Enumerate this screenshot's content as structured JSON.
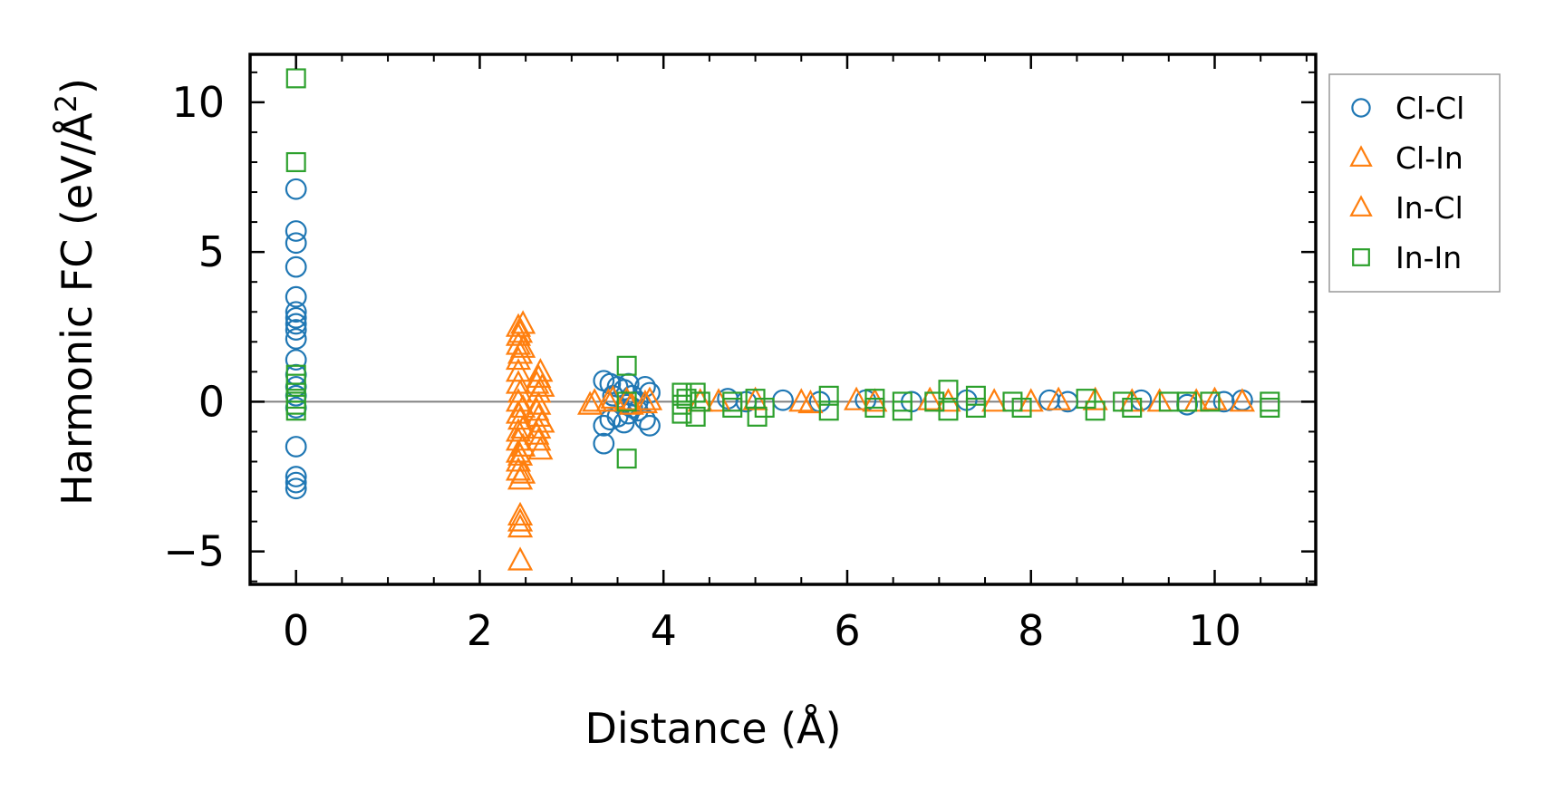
{
  "chart_data": {
    "type": "scatter",
    "xlabel": "Distance (Å)",
    "ylabel_main": "Harmonic FC (eV/Å",
    "ylabel_sup": "2",
    "ylabel_close": ")",
    "xlim": [
      -0.5,
      11.1
    ],
    "ylim": [
      -6.1,
      11.6
    ],
    "x_ticks": [
      {
        "value": 0,
        "label": "0"
      },
      {
        "value": 2,
        "label": "2"
      },
      {
        "value": 4,
        "label": "4"
      },
      {
        "value": 6,
        "label": "6"
      },
      {
        "value": 8,
        "label": "8"
      },
      {
        "value": 10,
        "label": "10"
      }
    ],
    "y_ticks": [
      {
        "value": -5,
        "label": "−5"
      },
      {
        "value": 0,
        "label": "0"
      },
      {
        "value": 5,
        "label": "5"
      },
      {
        "value": 10,
        "label": "10"
      }
    ],
    "zero_line": 0,
    "legend_position": "outside-right",
    "series": [
      {
        "name": "Cl-Cl",
        "marker": "circle",
        "color": "#1f77b4",
        "points": [
          [
            0,
            7.1
          ],
          [
            0,
            5.7
          ],
          [
            0,
            5.3
          ],
          [
            0,
            4.5
          ],
          [
            0,
            3.5
          ],
          [
            0,
            3.0
          ],
          [
            0,
            2.8
          ],
          [
            0,
            2.6
          ],
          [
            0,
            2.4
          ],
          [
            0,
            2.1
          ],
          [
            0,
            1.4
          ],
          [
            0,
            0.9
          ],
          [
            0,
            0.5
          ],
          [
            0,
            0.2
          ],
          [
            0,
            -0.2
          ],
          [
            0,
            -1.5
          ],
          [
            0,
            -2.5
          ],
          [
            0,
            -2.7
          ],
          [
            0,
            -2.9
          ],
          [
            3.35,
            0.7
          ],
          [
            3.42,
            0.6
          ],
          [
            3.5,
            0.5
          ],
          [
            3.57,
            0.4
          ],
          [
            3.62,
            0.6
          ],
          [
            3.66,
            0.2
          ],
          [
            3.72,
            0.0
          ],
          [
            3.8,
            0.5
          ],
          [
            3.85,
            0.3
          ],
          [
            3.35,
            -0.8
          ],
          [
            3.42,
            -0.6
          ],
          [
            3.5,
            -0.5
          ],
          [
            3.57,
            -0.7
          ],
          [
            3.62,
            -0.4
          ],
          [
            3.66,
            -0.2
          ],
          [
            3.72,
            -0.3
          ],
          [
            3.8,
            -0.6
          ],
          [
            3.85,
            -0.8
          ],
          [
            3.35,
            -1.4
          ],
          [
            3.45,
            0.2
          ],
          [
            3.6,
            -0.1
          ],
          [
            4.7,
            0.1
          ],
          [
            4.9,
            0.0
          ],
          [
            5.3,
            0.05
          ],
          [
            5.7,
            0.0
          ],
          [
            6.2,
            0.05
          ],
          [
            6.7,
            0.0
          ],
          [
            7.3,
            0.05
          ],
          [
            8.2,
            0.05
          ],
          [
            8.4,
            0.0
          ],
          [
            9.2,
            0.05
          ],
          [
            9.7,
            -0.1
          ],
          [
            10.1,
            0.0
          ],
          [
            10.3,
            0.05
          ]
        ]
      },
      {
        "name": "Cl-In",
        "marker": "triangle",
        "color": "#ff7f0e",
        "points": [
          [
            2.42,
            2.5
          ],
          [
            2.42,
            2.2
          ],
          [
            2.42,
            1.9
          ],
          [
            2.42,
            1.4
          ],
          [
            2.42,
            1.0
          ],
          [
            2.42,
            0.6
          ],
          [
            2.42,
            0.0
          ],
          [
            2.42,
            -0.4
          ],
          [
            2.42,
            -1.0
          ],
          [
            2.42,
            -1.3
          ],
          [
            2.42,
            -1.7
          ],
          [
            2.42,
            -2.0
          ],
          [
            2.42,
            -2.3
          ],
          [
            2.47,
            2.6
          ],
          [
            2.47,
            1.8
          ],
          [
            2.47,
            -0.2
          ],
          [
            2.47,
            -0.9
          ],
          [
            2.47,
            -1.5
          ],
          [
            2.47,
            -2.4
          ],
          [
            2.44,
            -3.8
          ],
          [
            2.44,
            -4.2
          ],
          [
            2.44,
            -5.3
          ],
          [
            2.64,
            0.8
          ],
          [
            2.64,
            0.3
          ],
          [
            2.64,
            -0.1
          ],
          [
            2.64,
            -0.5
          ],
          [
            2.64,
            -0.9
          ],
          [
            2.64,
            -1.3
          ],
          [
            2.66,
            1.0
          ],
          [
            2.66,
            -1.6
          ],
          [
            2.68,
            0.5
          ],
          [
            2.68,
            -0.7
          ],
          [
            3.25,
            0.0
          ],
          [
            3.45,
            0.1
          ],
          [
            3.65,
            -0.1
          ],
          [
            3.85,
            0.05
          ],
          [
            4.6,
            0.0
          ],
          [
            5.5,
            0.0
          ],
          [
            6.1,
            0.05
          ],
          [
            7.1,
            0.0
          ],
          [
            8.3,
            0.05
          ],
          [
            9.1,
            0.0
          ],
          [
            10.0,
            0.05
          ]
        ]
      },
      {
        "name": "In-Cl",
        "marker": "triangle",
        "color": "#ff7f0e",
        "points": [
          [
            2.44,
            2.3
          ],
          [
            2.44,
            1.6
          ],
          [
            2.44,
            0.3
          ],
          [
            2.44,
            -0.6
          ],
          [
            2.44,
            -1.8
          ],
          [
            2.44,
            -2.6
          ],
          [
            2.44,
            -4.0
          ],
          [
            2.62,
            0.6
          ],
          [
            2.62,
            -0.3
          ],
          [
            2.62,
            -1.1
          ],
          [
            3.2,
            -0.1
          ],
          [
            3.4,
            0.0
          ],
          [
            3.6,
            0.05
          ],
          [
            3.8,
            -0.05
          ],
          [
            4.4,
            0.0
          ],
          [
            5.0,
            0.05
          ],
          [
            5.6,
            -0.05
          ],
          [
            6.3,
            0.0
          ],
          [
            6.9,
            0.05
          ],
          [
            7.6,
            0.0
          ],
          [
            8.0,
            0.0
          ],
          [
            8.7,
            0.05
          ],
          [
            9.4,
            0.0
          ],
          [
            9.8,
            0.0
          ],
          [
            10.3,
            0.0
          ]
        ]
      },
      {
        "name": "In-In",
        "marker": "square",
        "color": "#2ca02c",
        "points": [
          [
            0,
            10.8
          ],
          [
            0,
            8.0
          ],
          [
            0,
            0.9
          ],
          [
            0,
            0.6
          ],
          [
            0,
            0.3
          ],
          [
            0,
            0.1
          ],
          [
            0,
            -0.1
          ],
          [
            0,
            -0.3
          ],
          [
            3.6,
            1.2
          ],
          [
            3.6,
            0.0
          ],
          [
            3.6,
            -1.9
          ],
          [
            4.2,
            0.3
          ],
          [
            4.2,
            -0.1
          ],
          [
            4.2,
            -0.4
          ],
          [
            4.25,
            0.1
          ],
          [
            4.35,
            0.3
          ],
          [
            4.35,
            -0.5
          ],
          [
            4.4,
            0.0
          ],
          [
            4.75,
            0.0
          ],
          [
            4.75,
            -0.2
          ],
          [
            5.0,
            0.1
          ],
          [
            5.02,
            -0.5
          ],
          [
            5.1,
            -0.2
          ],
          [
            5.8,
            0.2
          ],
          [
            5.8,
            -0.3
          ],
          [
            6.3,
            0.1
          ],
          [
            6.3,
            -0.2
          ],
          [
            6.6,
            0.0
          ],
          [
            6.6,
            -0.3
          ],
          [
            6.95,
            0.0
          ],
          [
            7.1,
            0.4
          ],
          [
            7.1,
            -0.3
          ],
          [
            7.4,
            0.2
          ],
          [
            7.4,
            -0.2
          ],
          [
            7.8,
            0.0
          ],
          [
            7.9,
            -0.2
          ],
          [
            8.6,
            0.1
          ],
          [
            8.7,
            -0.3
          ],
          [
            9.0,
            0.0
          ],
          [
            9.1,
            -0.2
          ],
          [
            9.5,
            0.0
          ],
          [
            9.7,
            0.0
          ],
          [
            9.95,
            0.0
          ],
          [
            10.6,
            0.0
          ],
          [
            10.6,
            -0.2
          ]
        ]
      }
    ]
  }
}
